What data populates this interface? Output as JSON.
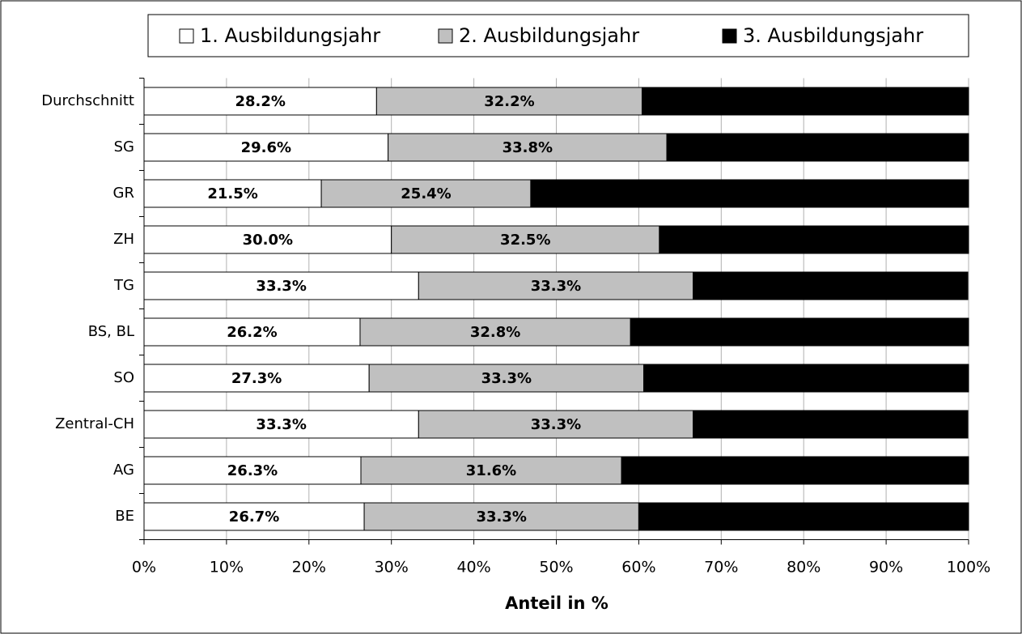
{
  "chart_data": {
    "type": "stacked_barh",
    "categories": [
      "Durchschnitt",
      "SG",
      "GR",
      "ZH",
      "TG",
      "BS, BL",
      "SO",
      "Zentral-CH",
      "AG",
      "BE"
    ],
    "series": [
      {
        "name": "1. Ausbildungsjahr",
        "color": "#ffffff",
        "values": [
          28.2,
          29.6,
          21.5,
          30.0,
          33.3,
          26.2,
          27.3,
          33.3,
          26.3,
          26.7
        ],
        "value_labels": [
          "28.2%",
          "29.6%",
          "21.5%",
          "30.0%",
          "33.3%",
          "26.2%",
          "27.3%",
          "33.3%",
          "26.3%",
          "26.7%"
        ]
      },
      {
        "name": "2. Ausbildungsjahr",
        "color": "#c0c0c0",
        "values": [
          32.2,
          33.8,
          25.4,
          32.5,
          33.3,
          32.8,
          33.3,
          33.3,
          31.6,
          33.3
        ],
        "value_labels": [
          "32.2%",
          "33.8%",
          "25.4%",
          "32.5%",
          "33.3%",
          "32.8%",
          "33.3%",
          "33.3%",
          "31.6%",
          "33.3%"
        ]
      },
      {
        "name": "3. Ausbildungsjahr",
        "color": "#000000",
        "values": [
          39.6,
          36.6,
          53.1,
          37.5,
          33.3,
          41.0,
          39.4,
          33.3,
          42.1,
          40.0
        ],
        "value_labels": [
          "39.6%",
          "36.6%",
          "53.1%",
          "37.5%",
          "33.3%",
          "41.0%",
          "39.4%",
          "33.3%",
          "42.1%",
          "40.0%"
        ]
      }
    ],
    "xlabel": "Anteil in %",
    "xlim": [
      0,
      100
    ],
    "xticks": [
      {
        "value": 0,
        "label": "0%"
      },
      {
        "value": 10,
        "label": "10%"
      },
      {
        "value": 20,
        "label": "20%"
      },
      {
        "value": 30,
        "label": "30%"
      },
      {
        "value": 40,
        "label": "40%"
      },
      {
        "value": 50,
        "label": "50%"
      },
      {
        "value": 60,
        "label": "60%"
      },
      {
        "value": 70,
        "label": "70%"
      },
      {
        "value": 80,
        "label": "80%"
      },
      {
        "value": 90,
        "label": "90%"
      },
      {
        "value": 100,
        "label": "100%"
      }
    ],
    "grid": true
  }
}
